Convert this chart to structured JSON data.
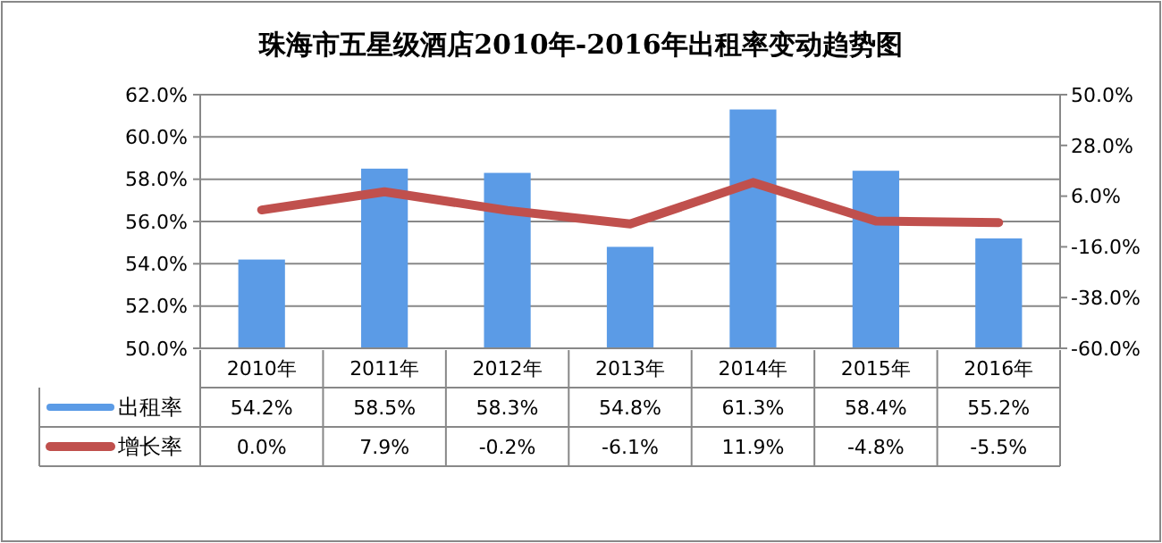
{
  "chart_data": {
    "type": "bar",
    "title": "珠海市五星级酒店2010年-2016年出租率变动趋势图",
    "categories": [
      "2010年",
      "2011年",
      "2012年",
      "2013年",
      "2014年",
      "2015年",
      "2016年"
    ],
    "series": [
      {
        "name": "出租率",
        "color": "#5b9be6",
        "values": [
          54.2,
          58.5,
          58.3,
          54.8,
          61.3,
          58.4,
          55.2
        ],
        "value_labels": [
          "54.2%",
          "58.5%",
          "58.3%",
          "54.8%",
          "61.3%",
          "58.4%",
          "55.2%"
        ]
      },
      {
        "name": "增长率",
        "type": "line",
        "axis": "y2",
        "color": "#c0504d",
        "values": [
          0.0,
          7.9,
          -0.2,
          -6.1,
          11.9,
          -4.8,
          -5.5
        ],
        "value_labels": [
          "0.0%",
          "7.9%",
          "-0.2%",
          "-6.1%",
          "11.9%",
          "-4.8%",
          "-5.5%"
        ]
      }
    ],
    "ylim": [
      50,
      62
    ],
    "yticks": [
      {
        "value": 50,
        "label": "50.0%"
      },
      {
        "value": 52,
        "label": "52.0%"
      },
      {
        "value": 54,
        "label": "54.0%"
      },
      {
        "value": 56,
        "label": "56.0%"
      },
      {
        "value": 58,
        "label": "58.0%"
      },
      {
        "value": 60,
        "label": "60.0%"
      },
      {
        "value": 62,
        "label": "62.0%"
      }
    ],
    "y2lim": [
      -60,
      50
    ],
    "y2ticks": [
      {
        "value": -60,
        "label": "-60.0%"
      },
      {
        "value": -38,
        "label": "-38.0%"
      },
      {
        "value": -16,
        "label": "-16.0%"
      },
      {
        "value": 6,
        "label": "6.0%"
      },
      {
        "value": 28,
        "label": "28.0%"
      },
      {
        "value": 50,
        "label": "50.0%"
      }
    ],
    "grid": "y",
    "legend": "bottom",
    "marker": "none"
  }
}
